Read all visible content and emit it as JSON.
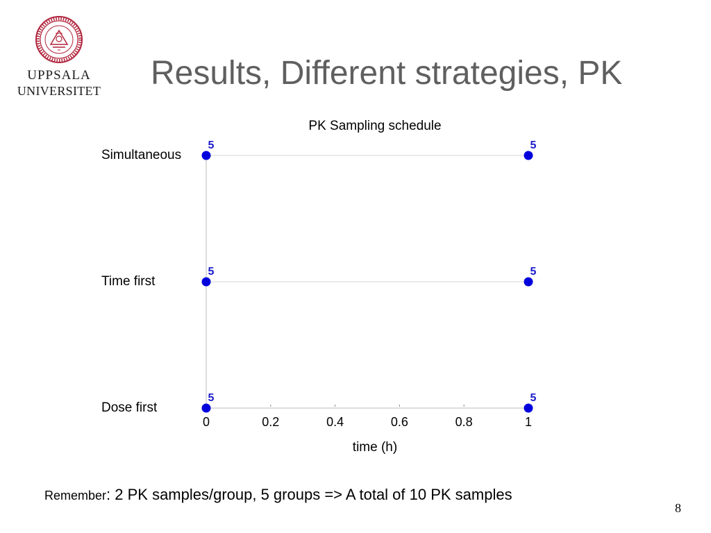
{
  "slide": {
    "title": "Results, Different strategies, PK",
    "logo": {
      "line1": "UPPSALA",
      "line2": "UNIVERSITET"
    },
    "footnote": {
      "lead": "Remember",
      "text": ": 2 PK samples/group, 5 groups => A total of 10 PK samples"
    },
    "page_number": "8"
  },
  "colors": {
    "marker": "#0000dd",
    "label": "#1a1acc",
    "grid": "#d6d6d6",
    "axis": "#bbbbbb",
    "title": "#5f5f5f"
  },
  "chart_data": {
    "type": "scatter",
    "title": "PK Sampling schedule",
    "xlabel": "time (h)",
    "ylabel": "",
    "xlim": [
      0,
      1
    ],
    "x_ticks": [
      0,
      0.2,
      0.4,
      0.6,
      0.8,
      1
    ],
    "x_tick_labels": [
      "0",
      "0.2",
      "0.4",
      "0.6",
      "0.8",
      "1"
    ],
    "categories": [
      "Simultaneous",
      "Time first",
      "Dose first"
    ],
    "series": [
      {
        "category": "Simultaneous",
        "x": [
          0,
          1
        ],
        "labels": [
          "5",
          "5"
        ]
      },
      {
        "category": "Time first",
        "x": [
          0,
          1
        ],
        "labels": [
          "5",
          "5"
        ]
      },
      {
        "category": "Dose first",
        "x": [
          0,
          1
        ],
        "labels": [
          "5",
          "5"
        ]
      }
    ],
    "grid": true
  }
}
